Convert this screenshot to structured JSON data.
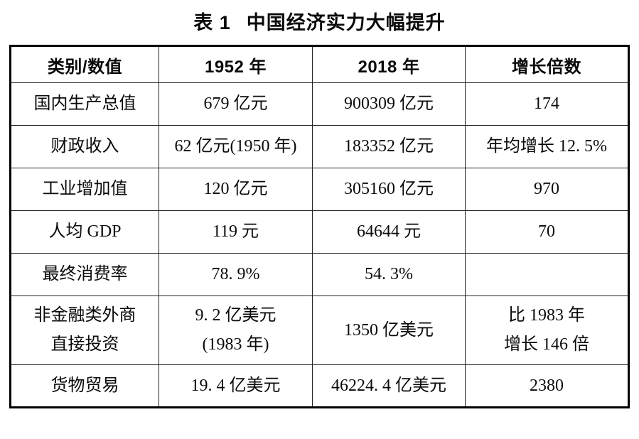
{
  "title": {
    "prefix": "表 1",
    "text": "中国经济实力大幅提升"
  },
  "table": {
    "headers": [
      "类别/数值",
      "1952 年",
      "2018 年",
      "增长倍数"
    ],
    "rows": [
      [
        "国内生产总值",
        "679 亿元",
        "900309 亿元",
        "174"
      ],
      [
        "财政收入",
        "62 亿元(1950 年)",
        "183352 亿元",
        "年均增长 12. 5%"
      ],
      [
        "工业增加值",
        "120 亿元",
        "305160 亿元",
        "970"
      ],
      [
        "人均 GDP",
        "119 元",
        "64644 元",
        "70"
      ],
      [
        "最终消费率",
        "78. 9%",
        "54. 3%",
        ""
      ],
      [
        "非金融类外商\n直接投资",
        "9. 2 亿美元\n(1983 年)",
        "1350 亿美元",
        "比 1983 年\n增长 146 倍"
      ],
      [
        "货物贸易",
        "19. 4 亿美元",
        "46224. 4 亿美元",
        "2380"
      ]
    ],
    "text_color": "#0a0a0a",
    "border_color": "#000000",
    "background_color": "#ffffff"
  }
}
